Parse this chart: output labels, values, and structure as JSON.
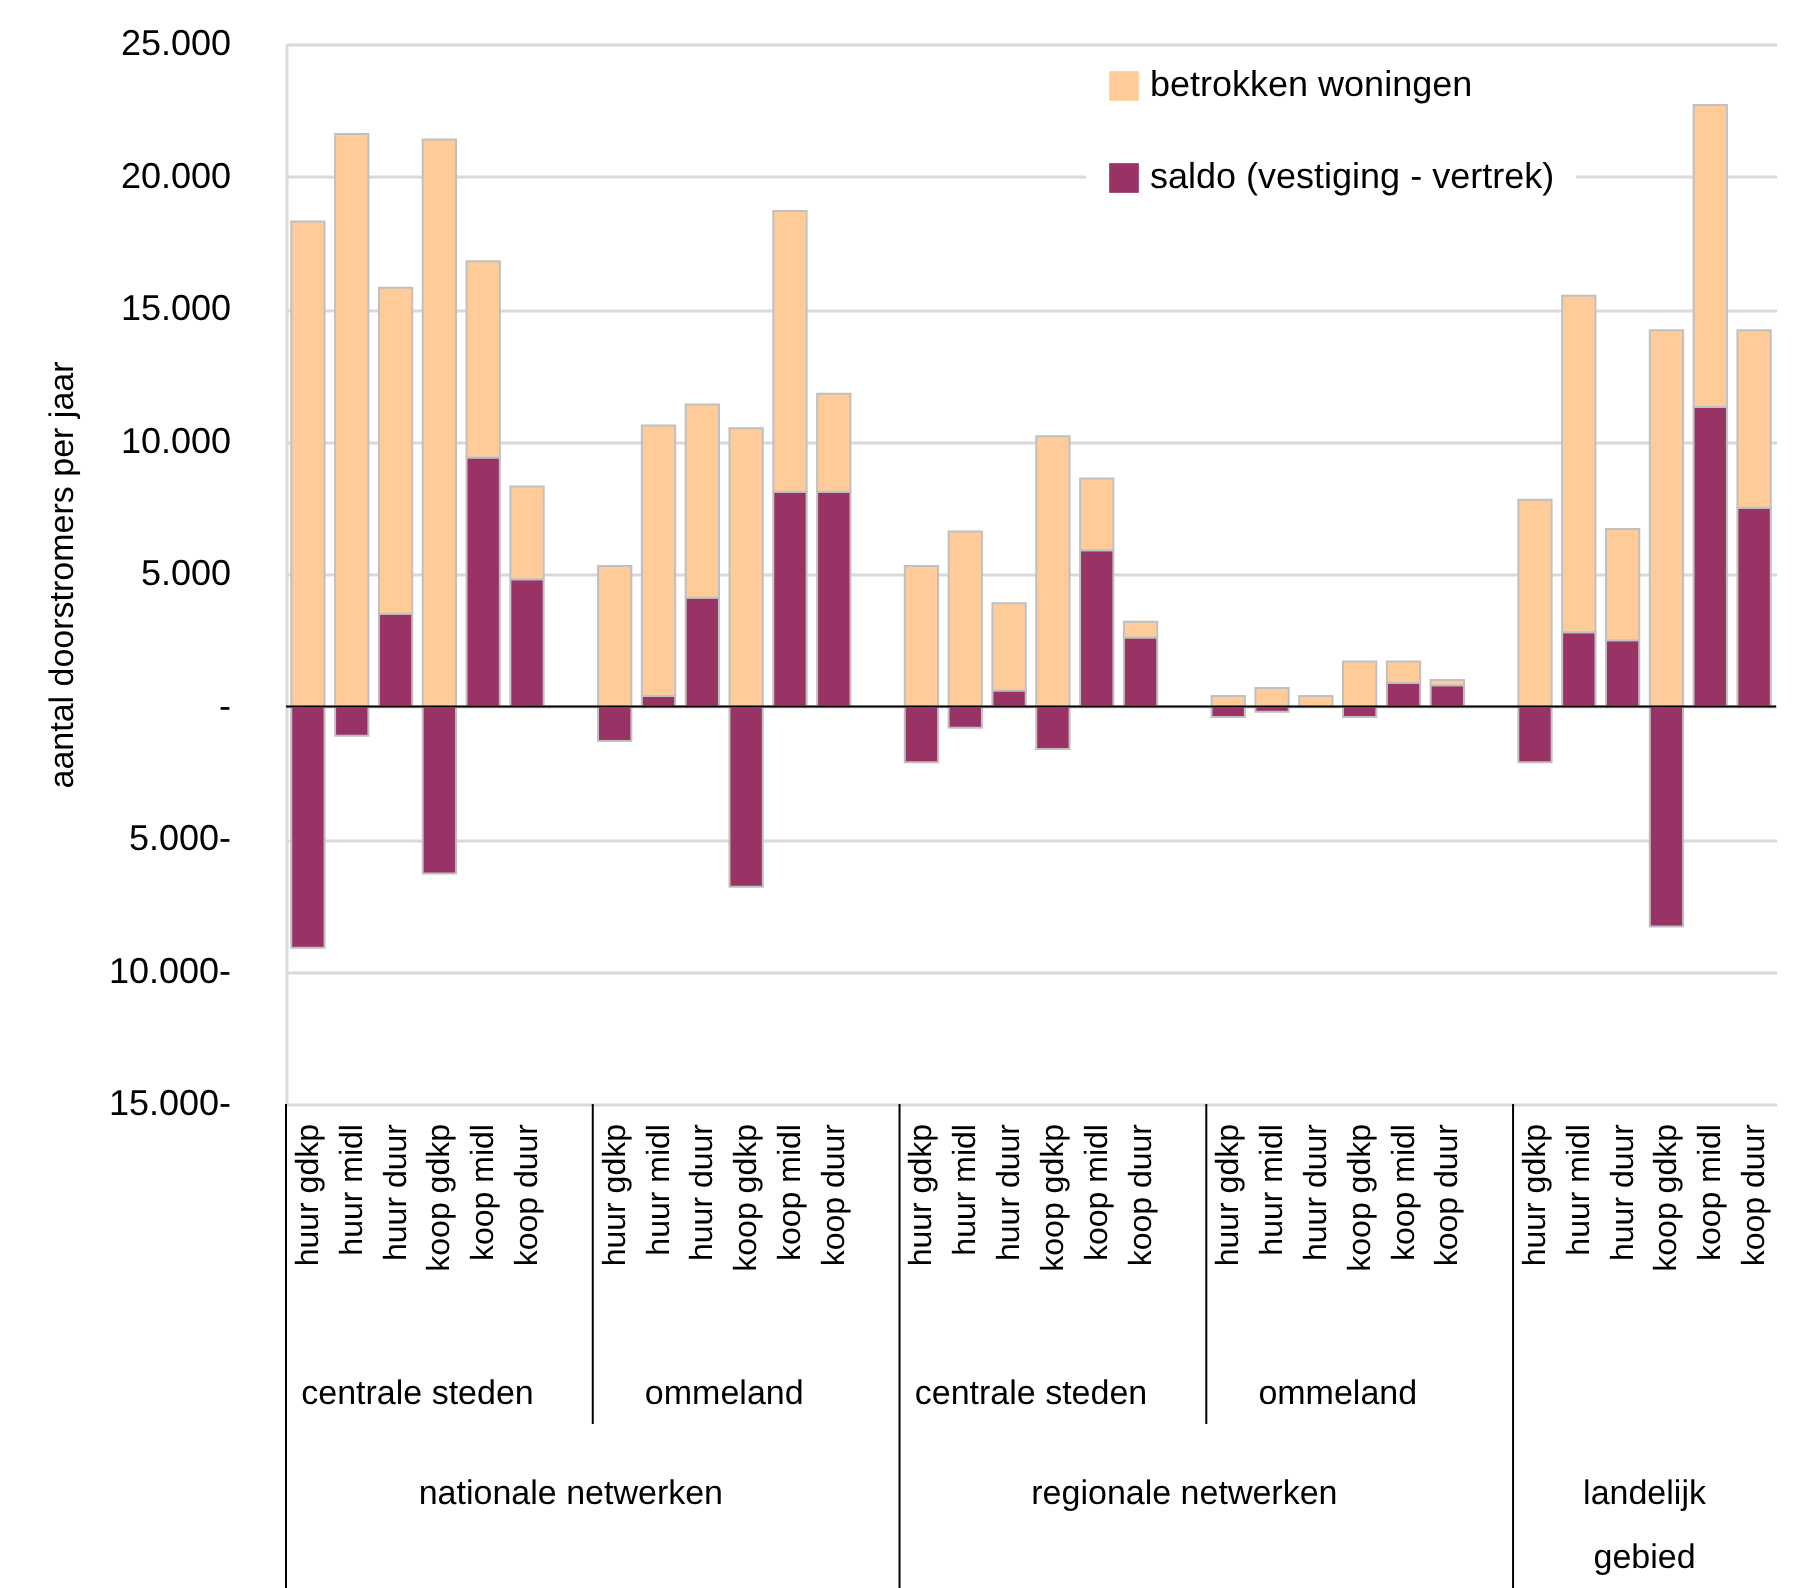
{
  "chart_data": {
    "type": "bar",
    "stacked": true,
    "ylabel": "aantal doorstromers per jaar",
    "categories": [
      "huur gdkp",
      "huur midl",
      "huur duur",
      "koop gdkp",
      "koop midl",
      "koop duur",
      null,
      "huur gdkp",
      "huur midl",
      "huur duur",
      "koop gdkp",
      "koop midl",
      "koop duur",
      null,
      "huur gdkp",
      "huur midl",
      "huur duur",
      "koop gdkp",
      "koop midl",
      "koop duur",
      null,
      "huur gdkp",
      "huur midl",
      "huur duur",
      "koop gdkp",
      "koop midl",
      "koop duur",
      null,
      "huur gdkp",
      "huur midl",
      "huur duur",
      "koop gdkp",
      "koop midl",
      "koop duur"
    ],
    "series": [
      {
        "name": "saldo (vestiging - vertrek)",
        "color": "#993366",
        "values": [
          -9100,
          -1100,
          3500,
          -6300,
          9400,
          4800,
          null,
          -1300,
          400,
          4100,
          -6800,
          8100,
          8100,
          null,
          -2100,
          -800,
          600,
          -1600,
          5900,
          2600,
          null,
          -400,
          -200,
          null,
          -400,
          900,
          800,
          null,
          -2100,
          2800,
          2500,
          -8300,
          11300,
          7500
        ]
      },
      {
        "name": "betrokken woningen",
        "color": "#ffcc99",
        "values": [
          18300,
          21600,
          12300,
          21400,
          7400,
          3500,
          null,
          5300,
          10200,
          7300,
          10500,
          10600,
          3700,
          null,
          5300,
          6600,
          3300,
          10200,
          2700,
          600,
          null,
          400,
          700,
          400,
          1700,
          800,
          200,
          null,
          7800,
          12700,
          4200,
          14200,
          11400,
          6700
        ]
      }
    ],
    "ylim": [
      -15000,
      25000
    ],
    "yticks": [
      {
        "value": -15000,
        "label": "15.000-"
      },
      {
        "value": -10000,
        "label": "10.000-"
      },
      {
        "value": -5000,
        "label": "5.000-"
      },
      {
        "value": 0,
        "label": "-"
      },
      {
        "value": 5000,
        "label": "5.000"
      },
      {
        "value": 10000,
        "label": "10.000"
      },
      {
        "value": 15000,
        "label": "15.000"
      },
      {
        "value": 20000,
        "label": "20.000"
      },
      {
        "value": 25000,
        "label": "25.000"
      }
    ],
    "grid": "y",
    "legend": "top right",
    "annotations": [
      "centrale steden",
      "ommeland",
      "centrale steden",
      "ommeland",
      "nationale netwerken",
      "regionale netwerken",
      "landelijk gebied"
    ]
  }
}
